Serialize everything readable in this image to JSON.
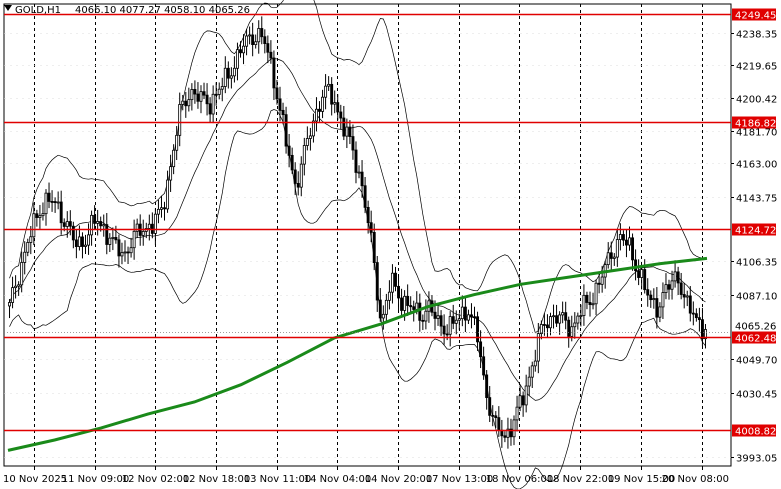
{
  "header": {
    "symbol_tf": "GOLD,H1",
    "ohlc": "4066.10 4077.27 4058.10 4065.26"
  },
  "colors": {
    "candle": "#000000",
    "ma": "#1a8a1a",
    "bands": "#000000",
    "levels": "#e00000",
    "current": "#808080",
    "grid": "#000000"
  },
  "chart_data": {
    "type": "candlestick",
    "symbol": "GOLD",
    "timeframe": "H1",
    "ylim": [
      3988,
      4255
    ],
    "y_ticks": [
      "4238.35",
      "4219.65",
      "4200.42",
      "4181.70",
      "4163.00",
      "4143.75",
      "4106.35",
      "4087.10",
      "4049.70",
      "4030.45",
      "3993.05"
    ],
    "x_ticks": [
      "10 Nov 2025",
      "11 Nov 09:00",
      "12 Nov 02:00",
      "12 Nov 18:00",
      "13 Nov 11:00",
      "14 Nov 04:00",
      "14 Nov 20:00",
      "17 Nov 13:00",
      "18 Nov 06:00",
      "18 Nov 22:00",
      "19 Nov 15:00",
      "20 Nov 08:00"
    ],
    "horizontal_levels": [
      "4249.45",
      "4186.82",
      "4124.72",
      "4062.48",
      "4008.82"
    ],
    "current_price_label": "4065.26",
    "close_path": [
      4080,
      4100,
      4118,
      4135,
      4142,
      4138,
      4128,
      4115,
      4120,
      4130,
      4125,
      4115,
      4110,
      4120,
      4125,
      4128,
      4135,
      4165,
      4195,
      4205,
      4200,
      4198,
      4205,
      4215,
      4225,
      4235,
      4238,
      4230,
      4205,
      4175,
      4150,
      4170,
      4190,
      4205,
      4200,
      4185,
      4170,
      4150,
      4115,
      4070,
      4095,
      4085,
      4080,
      4075,
      4080,
      4070,
      4068,
      4072,
      4080,
      4065,
      4030,
      4010,
      4005,
      4015,
      4030,
      4050,
      4070,
      4075,
      4072,
      4068,
      4078,
      4085,
      4095,
      4110,
      4120,
      4115,
      4100,
      4085,
      4080,
      4090,
      4100,
      4080,
      4075,
      4065
    ],
    "ma_path": [
      3997,
      4003,
      4010,
      4018,
      4025,
      4035,
      4048,
      4062,
      4070,
      4080,
      4087,
      4093,
      4097,
      4101,
      4105,
      4108
    ]
  }
}
